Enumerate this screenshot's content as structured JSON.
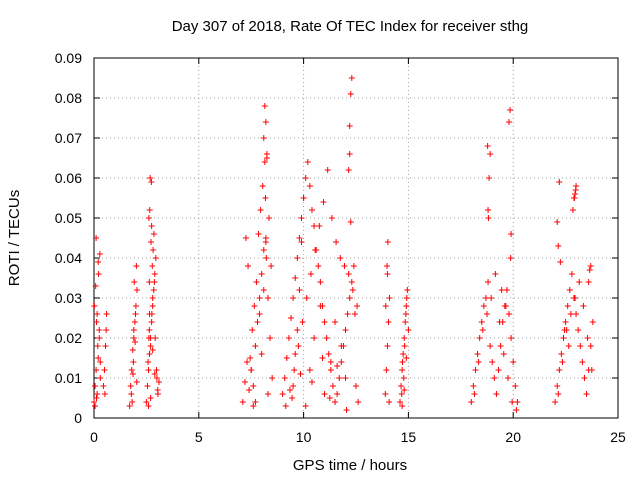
{
  "chart_data": {
    "type": "scatter",
    "title": "Day 307 of 2018, Rate Of TEC Index for receiver sthg",
    "xlabel": "GPS time / hours",
    "ylabel": "ROTI / TECUs",
    "xlim": [
      0,
      25
    ],
    "ylim": [
      0,
      0.09
    ],
    "xticks": [
      0,
      5,
      10,
      15,
      20,
      25
    ],
    "xtick_labels": [
      "0",
      "5",
      "10",
      "15",
      "20",
      "25"
    ],
    "yticks": [
      0,
      0.01,
      0.02,
      0.03,
      0.04,
      0.05,
      0.06,
      0.07,
      0.08,
      0.09
    ],
    "ytick_labels": [
      "0",
      "0.01",
      "0.02",
      "0.03",
      "0.04",
      "0.05",
      "0.06",
      "0.07",
      "0.08",
      "0.09"
    ],
    "grid": true,
    "marker": "+",
    "color": "#ff0000",
    "series": [
      {
        "name": "ROTI",
        "x": [
          0.0,
          0.05,
          0.1,
          0.15,
          0.2,
          0.25,
          0.3,
          0.02,
          0.08,
          0.12,
          0.18,
          0.22,
          0.28,
          0.1,
          0.2,
          0.15,
          0.25,
          0.3,
          0.05,
          0.12,
          0.6,
          0.55,
          0.5,
          0.45,
          0.58,
          0.52,
          1.7,
          1.75,
          1.8,
          1.85,
          1.9,
          1.95,
          2.0,
          2.05,
          1.78,
          1.88,
          1.98,
          1.82,
          1.92,
          2.02,
          1.86,
          1.96,
          2.04,
          1.9,
          2.5,
          2.55,
          2.6,
          2.65,
          2.7,
          2.75,
          2.8,
          2.85,
          2.9,
          2.95,
          3.0,
          3.05,
          3.1,
          2.62,
          2.66,
          2.72,
          2.78,
          2.82,
          2.88,
          2.68,
          2.74,
          2.8,
          2.58,
          2.64,
          2.7,
          2.76,
          2.86,
          2.92,
          2.98,
          3.04,
          2.6,
          2.7,
          2.8,
          2.9,
          2.65,
          2.75,
          2.62,
          2.64,
          7.1,
          7.2,
          7.3,
          7.4,
          7.5,
          7.6,
          7.7,
          7.8,
          7.9,
          8.0,
          8.1,
          8.2,
          8.3,
          8.4,
          8.5,
          7.25,
          7.35,
          7.45,
          7.55,
          7.65,
          7.75,
          7.85,
          7.95,
          8.05,
          8.15,
          8.25,
          8.35,
          8.45,
          7.9,
          8.0,
          8.1,
          8.2,
          8.15,
          8.25,
          8.18,
          8.22,
          8.2,
          8.1,
          8.3,
          7.5,
          7.6,
          7.7,
          9.0,
          9.1,
          9.2,
          9.3,
          9.4,
          9.5,
          9.6,
          9.7,
          9.8,
          9.9,
          10.0,
          10.1,
          10.2,
          10.3,
          10.4,
          10.5,
          10.6,
          10.7,
          10.8,
          10.9,
          11.0,
          11.1,
          11.2,
          11.3,
          11.4,
          11.5,
          11.6,
          11.7,
          11.8,
          11.9,
          12.0,
          12.1,
          12.2,
          12.3,
          12.4,
          12.5,
          12.6,
          9.15,
          9.35,
          9.55,
          9.75,
          9.95,
          10.15,
          10.35,
          10.55,
          10.75,
          10.95,
          11.15,
          11.35,
          11.55,
          11.75,
          11.95,
          12.15,
          12.35,
          12.55,
          9.5,
          9.6,
          9.7,
          9.8,
          9.9,
          10.0,
          10.3,
          10.5,
          10.8,
          11.0,
          11.3,
          11.5,
          11.8,
          12.0,
          12.2,
          12.25,
          12.3,
          12.2,
          12.15,
          12.25,
          9.45,
          9.85,
          10.1,
          10.4,
          10.9,
          11.25,
          11.6,
          12.05,
          12.45,
          13.9,
          13.95,
          14.0,
          14.05,
          14.1,
          14.0,
          13.98,
          14.02,
          14.08,
          13.92,
          14.6,
          14.65,
          14.7,
          14.75,
          14.8,
          14.85,
          14.9,
          14.95,
          15.0,
          14.68,
          14.72,
          14.78,
          14.82,
          14.88,
          14.92,
          14.7,
          14.8,
          14.9,
          18.0,
          18.1,
          18.2,
          18.3,
          18.4,
          18.5,
          18.6,
          18.7,
          18.8,
          18.9,
          19.0,
          19.1,
          19.2,
          19.3,
          19.4,
          19.5,
          19.6,
          19.7,
          19.8,
          19.9,
          20.0,
          20.1,
          20.2,
          18.15,
          18.35,
          18.55,
          18.75,
          18.95,
          19.15,
          19.35,
          19.55,
          19.75,
          19.95,
          20.15,
          18.8,
          18.85,
          18.9,
          18.78,
          18.82,
          19.8,
          19.85,
          19.9,
          19.88,
          19.45,
          19.65,
          22.0,
          22.1,
          22.2,
          22.3,
          22.4,
          22.5,
          22.6,
          22.7,
          22.8,
          22.9,
          23.0,
          23.1,
          23.2,
          23.3,
          23.4,
          23.5,
          23.6,
          23.7,
          23.8,
          22.15,
          22.35,
          22.55,
          22.75,
          22.95,
          23.15,
          23.35,
          23.55,
          23.75,
          22.1,
          22.15,
          22.2,
          22.25,
          22.9,
          22.95,
          23.0,
          22.85,
          22.92,
          22.98,
          23.6,
          23.65,
          23.7,
          22.45,
          22.65
        ],
        "y": [
          0.004,
          0.008,
          0.012,
          0.006,
          0.015,
          0.02,
          0.01,
          0.028,
          0.033,
          0.024,
          0.018,
          0.036,
          0.041,
          0.045,
          0.039,
          0.026,
          0.022,
          0.014,
          0.003,
          0.005,
          0.026,
          0.018,
          0.012,
          0.008,
          0.022,
          0.006,
          0.003,
          0.008,
          0.012,
          0.017,
          0.02,
          0.024,
          0.028,
          0.032,
          0.006,
          0.014,
          0.026,
          0.004,
          0.034,
          0.038,
          0.011,
          0.019,
          0.009,
          0.022,
          0.004,
          0.008,
          0.012,
          0.016,
          0.02,
          0.024,
          0.028,
          0.032,
          0.036,
          0.04,
          0.01,
          0.006,
          0.009,
          0.05,
          0.052,
          0.044,
          0.038,
          0.042,
          0.034,
          0.06,
          0.059,
          0.03,
          0.014,
          0.022,
          0.018,
          0.026,
          0.046,
          0.02,
          0.012,
          0.007,
          0.003,
          0.005,
          0.017,
          0.011,
          0.026,
          0.048,
          0.02,
          0.034,
          0.004,
          0.009,
          0.014,
          0.007,
          0.012,
          0.003,
          0.018,
          0.024,
          0.03,
          0.036,
          0.042,
          0.044,
          0.03,
          0.02,
          0.01,
          0.045,
          0.038,
          0.015,
          0.022,
          0.028,
          0.034,
          0.046,
          0.052,
          0.058,
          0.064,
          0.065,
          0.05,
          0.038,
          0.026,
          0.016,
          0.07,
          0.074,
          0.078,
          0.066,
          0.055,
          0.04,
          0.045,
          0.032,
          0.006,
          0.012,
          0.008,
          0.004,
          0.006,
          0.01,
          0.015,
          0.02,
          0.025,
          0.03,
          0.035,
          0.04,
          0.045,
          0.05,
          0.055,
          0.06,
          0.064,
          0.058,
          0.052,
          0.048,
          0.042,
          0.038,
          0.034,
          0.028,
          0.024,
          0.02,
          0.016,
          0.012,
          0.008,
          0.004,
          0.006,
          0.01,
          0.014,
          0.018,
          0.022,
          0.026,
          0.03,
          0.034,
          0.038,
          0.008,
          0.004,
          0.003,
          0.007,
          0.012,
          0.018,
          0.024,
          0.03,
          0.036,
          0.042,
          0.048,
          0.054,
          0.062,
          0.05,
          0.044,
          0.04,
          0.038,
          0.036,
          0.032,
          0.028,
          0.008,
          0.016,
          0.022,
          0.032,
          0.044,
          0.055,
          0.012,
          0.02,
          0.028,
          0.006,
          0.014,
          0.024,
          0.018,
          0.01,
          0.073,
          0.081,
          0.085,
          0.066,
          0.062,
          0.049,
          0.005,
          0.011,
          0.003,
          0.009,
          0.015,
          0.005,
          0.013,
          0.002,
          0.026,
          0.006,
          0.012,
          0.018,
          0.024,
          0.03,
          0.036,
          0.038,
          0.044,
          0.004,
          0.028,
          0.004,
          0.008,
          0.012,
          0.016,
          0.02,
          0.024,
          0.028,
          0.032,
          0.022,
          0.006,
          0.014,
          0.01,
          0.018,
          0.026,
          0.03,
          0.003,
          0.007,
          0.015,
          0.004,
          0.008,
          0.012,
          0.016,
          0.02,
          0.024,
          0.028,
          0.03,
          0.034,
          0.018,
          0.014,
          0.01,
          0.006,
          0.012,
          0.018,
          0.024,
          0.028,
          0.032,
          0.026,
          0.02,
          0.014,
          0.008,
          0.004,
          0.006,
          0.014,
          0.022,
          0.026,
          0.03,
          0.036,
          0.024,
          0.016,
          0.01,
          0.004,
          0.002,
          0.052,
          0.06,
          0.066,
          0.068,
          0.05,
          0.074,
          0.077,
          0.046,
          0.04,
          0.032,
          0.028,
          0.004,
          0.008,
          0.012,
          0.016,
          0.02,
          0.024,
          0.028,
          0.032,
          0.036,
          0.03,
          0.026,
          0.022,
          0.018,
          0.014,
          0.01,
          0.006,
          0.012,
          0.018,
          0.024,
          0.006,
          0.014,
          0.022,
          0.026,
          0.03,
          0.034,
          0.028,
          0.02,
          0.012,
          0.049,
          0.043,
          0.059,
          0.039,
          0.055,
          0.056,
          0.058,
          0.052,
          0.055,
          0.057,
          0.034,
          0.037,
          0.038,
          0.022,
          0.018
        ]
      }
    ]
  }
}
